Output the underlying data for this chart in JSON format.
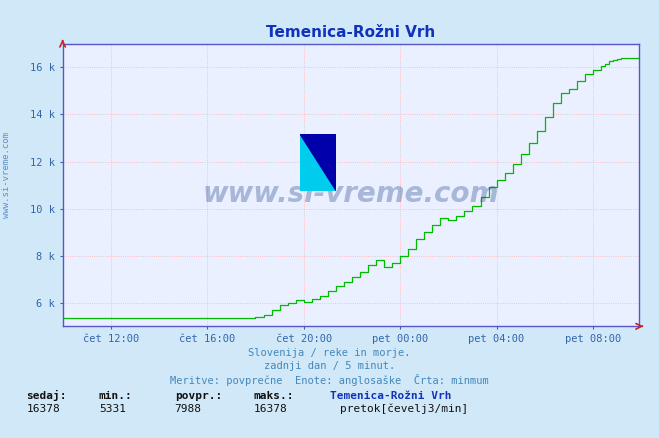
{
  "title": "Temenica-Rožni Vrh",
  "bg_color": "#d0e8f8",
  "plot_bg_color": "#eaf0ff",
  "grid_color": "#ffb0b0",
  "line_color": "#00bb00",
  "axis_color": "#5555cc",
  "title_color": "#1133bb",
  "tick_color": "#3366aa",
  "ylim": [
    5000,
    17000
  ],
  "yticks": [
    6000,
    8000,
    10000,
    12000,
    14000,
    16000
  ],
  "ytick_labels": [
    "6 k",
    "8 k",
    "10 k",
    "12 k",
    "14 k",
    "16 k"
  ],
  "xtick_labels": [
    "čet 12:00",
    "čet 16:00",
    "čet 20:00",
    "pet 00:00",
    "pet 04:00",
    "pet 08:00"
  ],
  "xlabel_bottom1": "Slovenija / reke in morje.",
  "xlabel_bottom2": "zadnji dan / 5 minut.",
  "xlabel_bottom3": "Meritve: povprečne  Enote: anglosaške  Črta: minmum",
  "watermark_text": "www.si-vreme.com",
  "legend_label": "pretok[čevelj3/min]",
  "legend_color": "#00cc00",
  "footer_label1": "sedaj:",
  "footer_label2": "min.:",
  "footer_label3": "povpr.:",
  "footer_label4": "maks.:",
  "footer_label5": "Temenica-Rožni Vrh",
  "footer_val1": "16378",
  "footer_val2": "5331",
  "footer_val3": "7988",
  "footer_val4": "16378",
  "n_points": 288,
  "tick_positions": [
    24,
    72,
    120,
    168,
    216,
    264
  ]
}
